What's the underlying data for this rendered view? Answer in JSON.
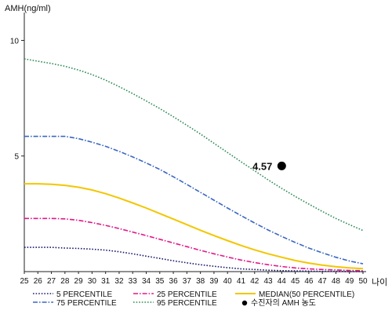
{
  "chart_data": {
    "type": "line",
    "ylabel": "AMH(ng/ml)",
    "xlabel": "나이",
    "xlim": [
      25,
      50
    ],
    "ylim": [
      0,
      11
    ],
    "yticks": [
      5,
      10
    ],
    "x": [
      25,
      26,
      27,
      28,
      29,
      30,
      31,
      32,
      33,
      34,
      35,
      36,
      37,
      38,
      39,
      40,
      41,
      42,
      43,
      44,
      45,
      46,
      47,
      48,
      49,
      50
    ],
    "series": [
      {
        "name": "5 PERCENTILE",
        "color": "#1a1a6e",
        "style": "dotted",
        "values": [
          1.05,
          1.05,
          1.05,
          1.02,
          1.0,
          0.97,
          0.93,
          0.86,
          0.77,
          0.67,
          0.57,
          0.47,
          0.38,
          0.3,
          0.23,
          0.17,
          0.12,
          0.09,
          0.06,
          0.04,
          0.03,
          0.02,
          0.01,
          0.01,
          0.0,
          0.0
        ]
      },
      {
        "name": "25 PERCENTILE",
        "color": "#e0198a",
        "style": "dashdot",
        "values": [
          2.3,
          2.3,
          2.3,
          2.28,
          2.22,
          2.12,
          2.0,
          1.86,
          1.71,
          1.56,
          1.4,
          1.24,
          1.08,
          0.92,
          0.77,
          0.63,
          0.5,
          0.39,
          0.3,
          0.22,
          0.16,
          0.12,
          0.09,
          0.07,
          0.05,
          0.04
        ]
      },
      {
        "name": "MEDIAN(50 PERCENTILE)",
        "color": "#f2c600",
        "style": "solid",
        "values": [
          3.8,
          3.8,
          3.78,
          3.73,
          3.65,
          3.53,
          3.37,
          3.18,
          2.97,
          2.75,
          2.51,
          2.27,
          2.03,
          1.79,
          1.56,
          1.34,
          1.13,
          0.94,
          0.77,
          0.62,
          0.48,
          0.37,
          0.28,
          0.21,
          0.16,
          0.13
        ]
      },
      {
        "name": "75 PERCENTILE",
        "color": "#3a66c4",
        "style": "dashdot",
        "values": [
          5.85,
          5.85,
          5.85,
          5.85,
          5.75,
          5.6,
          5.42,
          5.2,
          4.96,
          4.7,
          4.42,
          4.1,
          3.77,
          3.43,
          3.09,
          2.75,
          2.42,
          2.1,
          1.8,
          1.52,
          1.26,
          1.02,
          0.81,
          0.62,
          0.46,
          0.34
        ]
      },
      {
        "name": "95 PERCENTILE",
        "color": "#2e8b57",
        "style": "dotted",
        "values": [
          9.2,
          9.1,
          9.0,
          8.88,
          8.72,
          8.52,
          8.28,
          8.0,
          7.7,
          7.38,
          7.05,
          6.7,
          6.33,
          5.95,
          5.55,
          5.15,
          4.75,
          4.36,
          3.97,
          3.6,
          3.25,
          2.92,
          2.6,
          2.3,
          2.03,
          1.78
        ]
      }
    ],
    "marker": {
      "name": "수진자의 AMH 농도",
      "x": 44,
      "y": 4.57,
      "label": "4.57",
      "color": "#000000"
    },
    "legend_placement": "bottom",
    "grid": false
  }
}
